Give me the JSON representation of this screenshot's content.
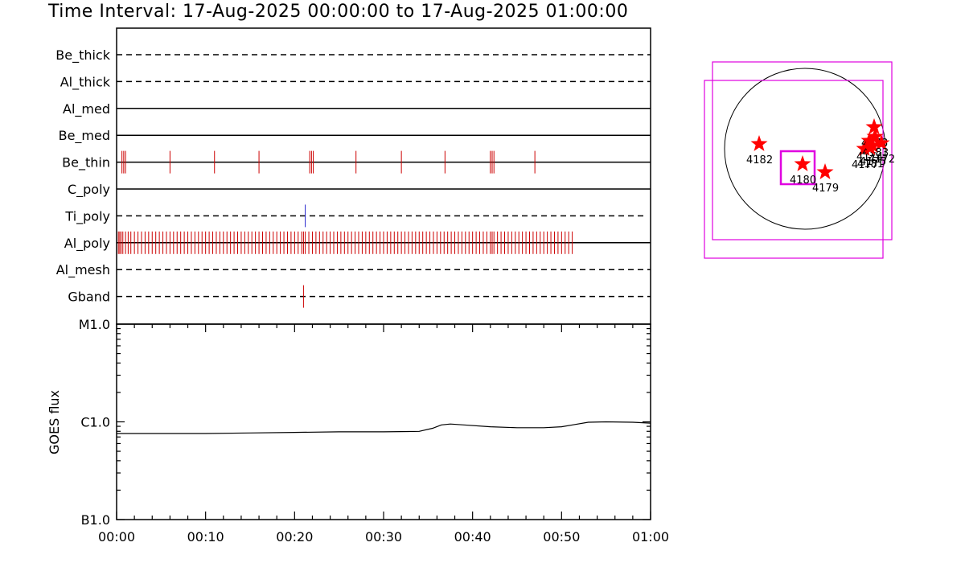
{
  "title": "Time Interval: 17-Aug-2025 00:00:00 to 17-Aug-2025 01:00:00",
  "chart_data": [
    {
      "type": "line",
      "panel": "filter-timeline",
      "filters": [
        {
          "name": "Be_thick",
          "style": "dashed"
        },
        {
          "name": "Al_thick",
          "style": "dashed"
        },
        {
          "name": "Al_med",
          "style": "solid"
        },
        {
          "name": "Be_med",
          "style": "solid"
        },
        {
          "name": "Be_thin",
          "style": "solid"
        },
        {
          "name": "C_poly",
          "style": "solid"
        },
        {
          "name": "Ti_poly",
          "style": "dashed"
        },
        {
          "name": "Al_poly",
          "style": "solid"
        },
        {
          "name": "Al_mesh",
          "style": "dashed"
        },
        {
          "name": "Gband",
          "style": "dashed"
        }
      ],
      "filter_end_minutes": {
        "Ti_poly": 59.5
      },
      "exposures": {
        "Be_thin": [
          0.6,
          0.8,
          1.0,
          6.0,
          11.0,
          16.0,
          21.7,
          21.9,
          22.1,
          26.9,
          32.0,
          36.9,
          42.0,
          42.2,
          42.4,
          47.0
        ],
        "Ti_poly": [
          21.2
        ],
        "Gband": [
          21.0
        ],
        "Al_poly": [
          0.2,
          0.35,
          0.5,
          0.7,
          1.0,
          1.3,
          1.6,
          2.0,
          2.4,
          2.8,
          3.2,
          3.6,
          4.0,
          4.4,
          4.8,
          5.2,
          5.6,
          6.0,
          6.4,
          6.8,
          7.2,
          7.6,
          8.0,
          8.4,
          8.8,
          9.2,
          9.6,
          10.0,
          10.4,
          10.8,
          11.2,
          11.6,
          12.0,
          12.4,
          12.8,
          13.2,
          13.6,
          14.0,
          14.4,
          14.8,
          15.2,
          15.6,
          16.0,
          16.4,
          16.8,
          17.2,
          17.6,
          18.0,
          18.4,
          18.8,
          19.2,
          19.6,
          20.0,
          20.4,
          20.8,
          21.0,
          21.2,
          21.6,
          22.0,
          22.4,
          22.8,
          23.2,
          23.6,
          24.0,
          24.4,
          24.8,
          25.2,
          25.6,
          26.0,
          26.4,
          26.8,
          27.2,
          27.6,
          28.0,
          28.4,
          28.8,
          29.2,
          29.6,
          30.0,
          30.4,
          30.8,
          31.2,
          31.6,
          32.0,
          32.4,
          32.8,
          33.2,
          33.6,
          34.0,
          34.4,
          34.8,
          35.2,
          35.6,
          36.0,
          36.4,
          36.8,
          37.2,
          37.6,
          38.0,
          38.4,
          38.8,
          39.2,
          39.6,
          40.0,
          40.4,
          40.8,
          41.2,
          41.6,
          42.0,
          42.2,
          42.4,
          42.8,
          43.2,
          43.6,
          44.0,
          44.4,
          44.8,
          45.2,
          45.6,
          46.0,
          46.4,
          46.8,
          47.2,
          47.6,
          48.0,
          48.4,
          48.8,
          49.2,
          49.6,
          50.0,
          50.4,
          50.8,
          51.2
        ]
      },
      "exposure_colors": {
        "Be_thin": "#cc0000",
        "Ti_poly": "#2222cc",
        "Gband": "#cc0000",
        "Al_poly": "#cc0000"
      }
    },
    {
      "type": "line",
      "panel": "goes-flux",
      "ylabel": "GOES flux",
      "yscale": "log",
      "yticks": [
        "M1.0",
        "C1.0",
        "B1.0"
      ],
      "ylim": [
        "B1.0",
        "M1.0"
      ],
      "xlim": [
        0,
        60
      ],
      "xticks": [
        "00:00",
        "00:10",
        "00:20",
        "00:30",
        "00:40",
        "00:50",
        "01:00"
      ],
      "series": [
        {
          "x": [
            0,
            5,
            10,
            15,
            20,
            25,
            30,
            34,
            35.5,
            36.5,
            37.5,
            39,
            42,
            45,
            48,
            50,
            51.5,
            53,
            55,
            58,
            60
          ],
          "y": [
            "7.6e-7",
            "7.6e-7",
            "7.6e-7",
            "7.7e-7",
            "7.8e-7",
            "7.9e-7",
            "7.9e-7",
            "8.0e-7",
            "8.6e-7",
            "9.3e-7",
            "9.5e-7",
            "9.3e-7",
            "8.9e-7",
            "8.7e-7",
            "8.7e-7",
            "8.9e-7",
            "9.4e-7",
            "9.9e-7",
            "1.0e-6",
            "9.9e-7",
            "9.7e-7"
          ]
        }
      ]
    },
    {
      "type": "scatter",
      "panel": "solar-disk-map",
      "regions": [
        {
          "label": "4182",
          "x": -0.57,
          "y": 0.06
        },
        {
          "label": "4180",
          "x": -0.03,
          "y": -0.19
        },
        {
          "label": "4179",
          "x": 0.25,
          "y": -0.29
        },
        {
          "label": "4177",
          "x": 0.74,
          "y": -0.0
        },
        {
          "label": "4178",
          "x": 0.86,
          "y": 0.27
        },
        {
          "label": "4174",
          "x": 0.8,
          "y": 0.1
        },
        {
          "label": "4175",
          "x": 0.84,
          "y": 0.04
        },
        {
          "label": "4172",
          "x": 0.95,
          "y": 0.07
        },
        {
          "label": "4183",
          "x": 0.87,
          "y": 0.15
        },
        {
          "label": "4181",
          "x": 0.81,
          "y": 0.01
        }
      ]
    }
  ],
  "colors": {
    "exposure": "#cc0000",
    "fov_box": "#e000e0",
    "star": "#ff0000",
    "axis": "#000000"
  }
}
